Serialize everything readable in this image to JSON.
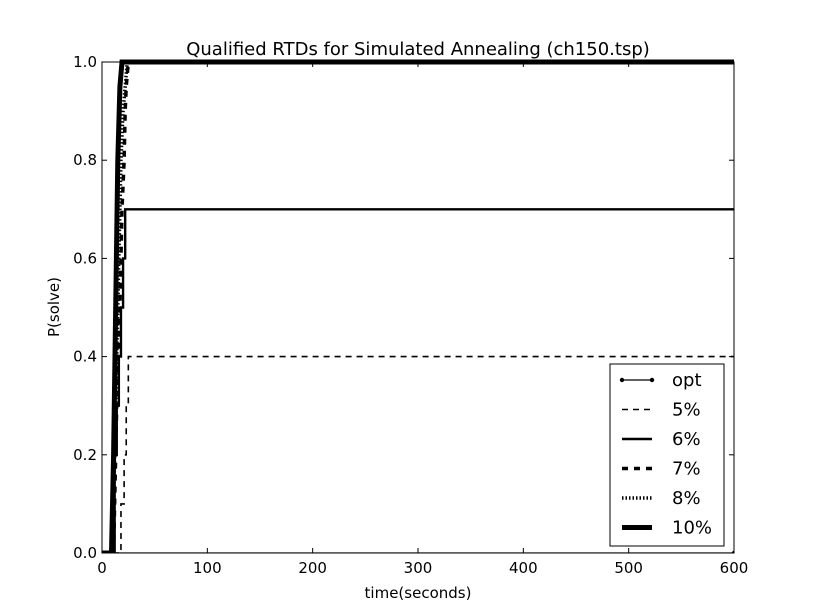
{
  "chart_data": {
    "type": "line",
    "title": "Qualified RTDs for Simulated Annealing (ch150.tsp)",
    "xlabel": "time(seconds)",
    "ylabel": "P(solve)",
    "xlim": [
      0,
      600
    ],
    "ylim": [
      0,
      1
    ],
    "xticks": [
      "0",
      "100",
      "200",
      "300",
      "400",
      "500",
      "600"
    ],
    "yticks": [
      "0.0",
      "0.2",
      "0.4",
      "0.6",
      "0.8",
      "1.0"
    ],
    "grid": false,
    "legend_position": "lower-right",
    "series": [
      {
        "name": "opt",
        "style": "line-dot",
        "x": [
          0,
          600
        ],
        "y": [
          0.0,
          0.0
        ]
      },
      {
        "name": "5%",
        "style": "dashed",
        "x": [
          0,
          18,
          18,
          21,
          21,
          23,
          23,
          25,
          25,
          600
        ],
        "y": [
          0.0,
          0.0,
          0.1,
          0.1,
          0.2,
          0.2,
          0.3,
          0.3,
          0.4,
          0.4
        ]
      },
      {
        "name": "6%",
        "style": "solid",
        "x": [
          0,
          12,
          12,
          14,
          14,
          16,
          16,
          18,
          18,
          20,
          20,
          22,
          22,
          24,
          24,
          26,
          26,
          600
        ],
        "y": [
          0.0,
          0.0,
          0.2,
          0.2,
          0.3,
          0.3,
          0.4,
          0.4,
          0.5,
          0.5,
          0.6,
          0.6,
          0.7,
          0.7,
          0.7,
          0.7,
          0.7,
          0.7
        ]
      },
      {
        "name": "7%",
        "style": "bold-dashed",
        "x": [
          0,
          11,
          13,
          15,
          17,
          19,
          21,
          22,
          23,
          25,
          600
        ],
        "y": [
          0.0,
          0.0,
          0.2,
          0.4,
          0.5,
          0.7,
          0.8,
          0.9,
          0.95,
          1.0,
          1.0
        ]
      },
      {
        "name": "8%",
        "style": "dotted",
        "x": [
          0,
          10,
          12,
          14,
          16,
          18,
          20,
          22,
          24,
          600
        ],
        "y": [
          0.0,
          0.0,
          0.2,
          0.4,
          0.6,
          0.8,
          0.9,
          0.95,
          1.0,
          1.0
        ]
      },
      {
        "name": "10%",
        "style": "thick-solid",
        "x": [
          0,
          9,
          11,
          13,
          15,
          17,
          19,
          600
        ],
        "y": [
          0.0,
          0.0,
          0.2,
          0.5,
          0.8,
          0.95,
          1.0,
          1.0
        ]
      }
    ]
  }
}
